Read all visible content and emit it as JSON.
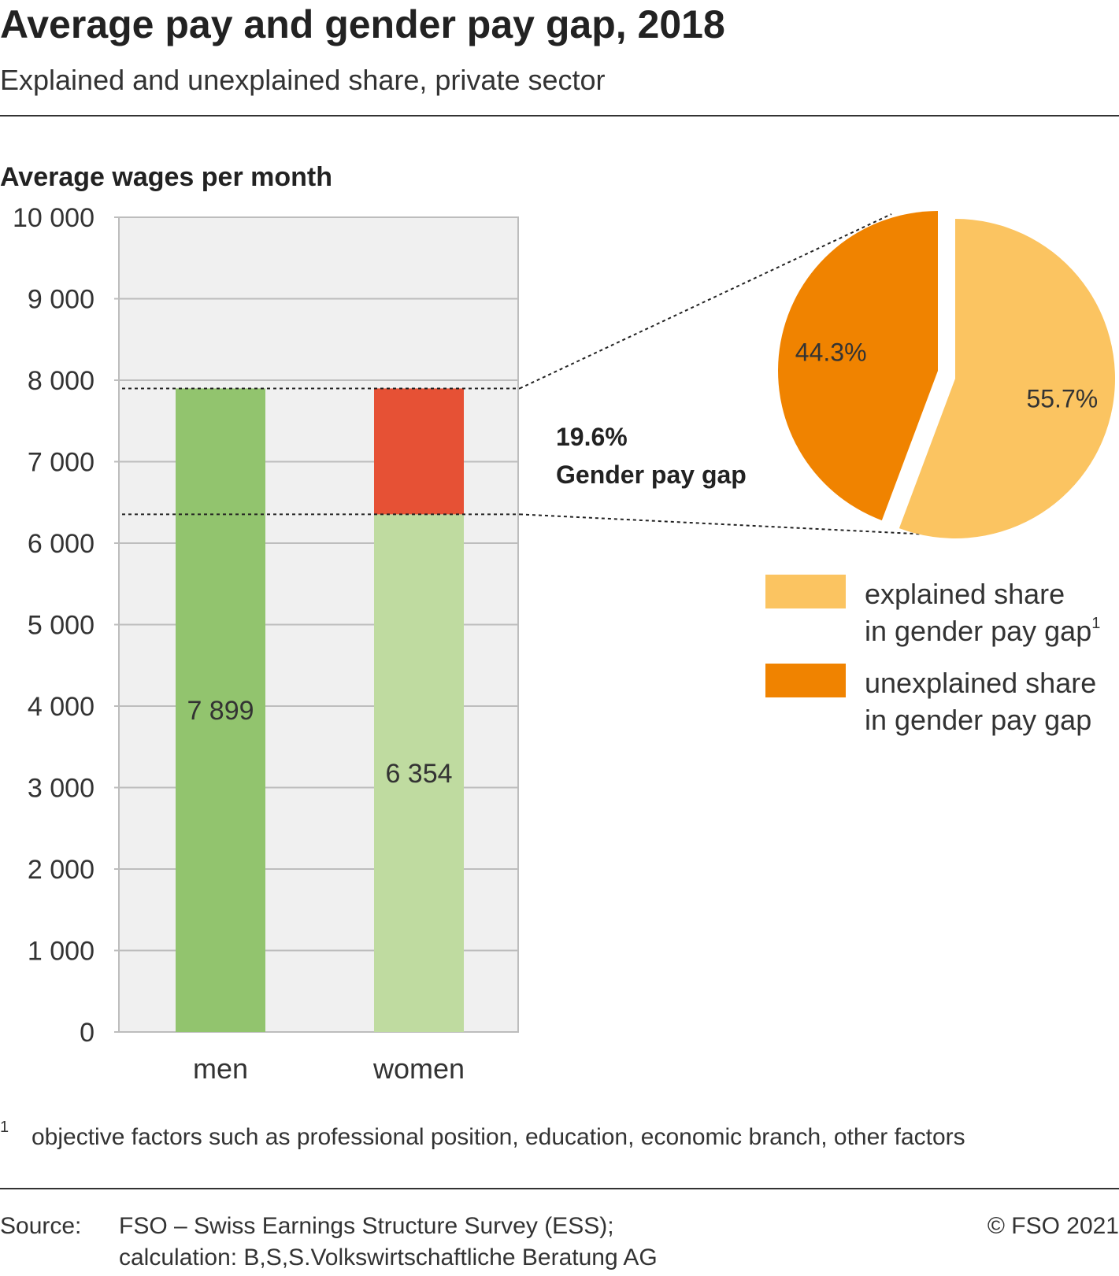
{
  "header": {
    "title": "Average pay and gender pay gap, 2018",
    "subtitle": "Explained and unexplained share, private sector"
  },
  "colors": {
    "men": "#92c46e",
    "women": "#bfdba0",
    "gap": "#e65135",
    "explained": "#fbc461",
    "unexplained": "#f08300",
    "plot_bg": "#f0f0f0",
    "grid": "#bdbdbd"
  },
  "chart_data": [
    {
      "type": "bar",
      "ylabel": "Average wages per month",
      "ylim": [
        0,
        10000
      ],
      "yticks": [
        0,
        1000,
        2000,
        3000,
        4000,
        5000,
        6000,
        7000,
        8000,
        9000,
        10000
      ],
      "ytick_labels": [
        "0",
        "1 000",
        "2 000",
        "3 000",
        "4 000",
        "5 000",
        "6 000",
        "7 000",
        "8 000",
        "9 000",
        "10 000"
      ],
      "categories": [
        "men",
        "women"
      ],
      "series": [
        {
          "values": [
            7899,
            6354
          ]
        },
        {
          "values": [
            0,
            1545
          ]
        }
      ],
      "data_labels": [
        "7 899",
        "6 354"
      ],
      "grid": true,
      "annotation": {
        "value": "19.6%",
        "label": "Gender pay gap"
      }
    },
    {
      "type": "pie",
      "slices": [
        {
          "label": "explained share in gender pay gap",
          "value": 55.7,
          "display": "55.7%"
        },
        {
          "label": "unexplained share in gender pay gap",
          "value": 44.3,
          "display": "44.3%"
        }
      ],
      "legend": [
        {
          "key": "explained",
          "line1": "explained share",
          "line2": "in gender pay gap",
          "sup": "1"
        },
        {
          "key": "unexplained",
          "line1": "unexplained share",
          "line2": "in gender pay gap",
          "sup": ""
        }
      ],
      "legend_position": "bottom-right"
    }
  ],
  "footnote": {
    "marker": "1",
    "text": "objective factors such as professional position, education, economic branch, other factors"
  },
  "source": {
    "label": "Source:",
    "line1": "FSO – Swiss Earnings Structure Survey (ESS);",
    "line2": "calculation: B,S,S.Volkswirtschaftliche Beratung AG",
    "copyright": "© FSO 2021"
  }
}
